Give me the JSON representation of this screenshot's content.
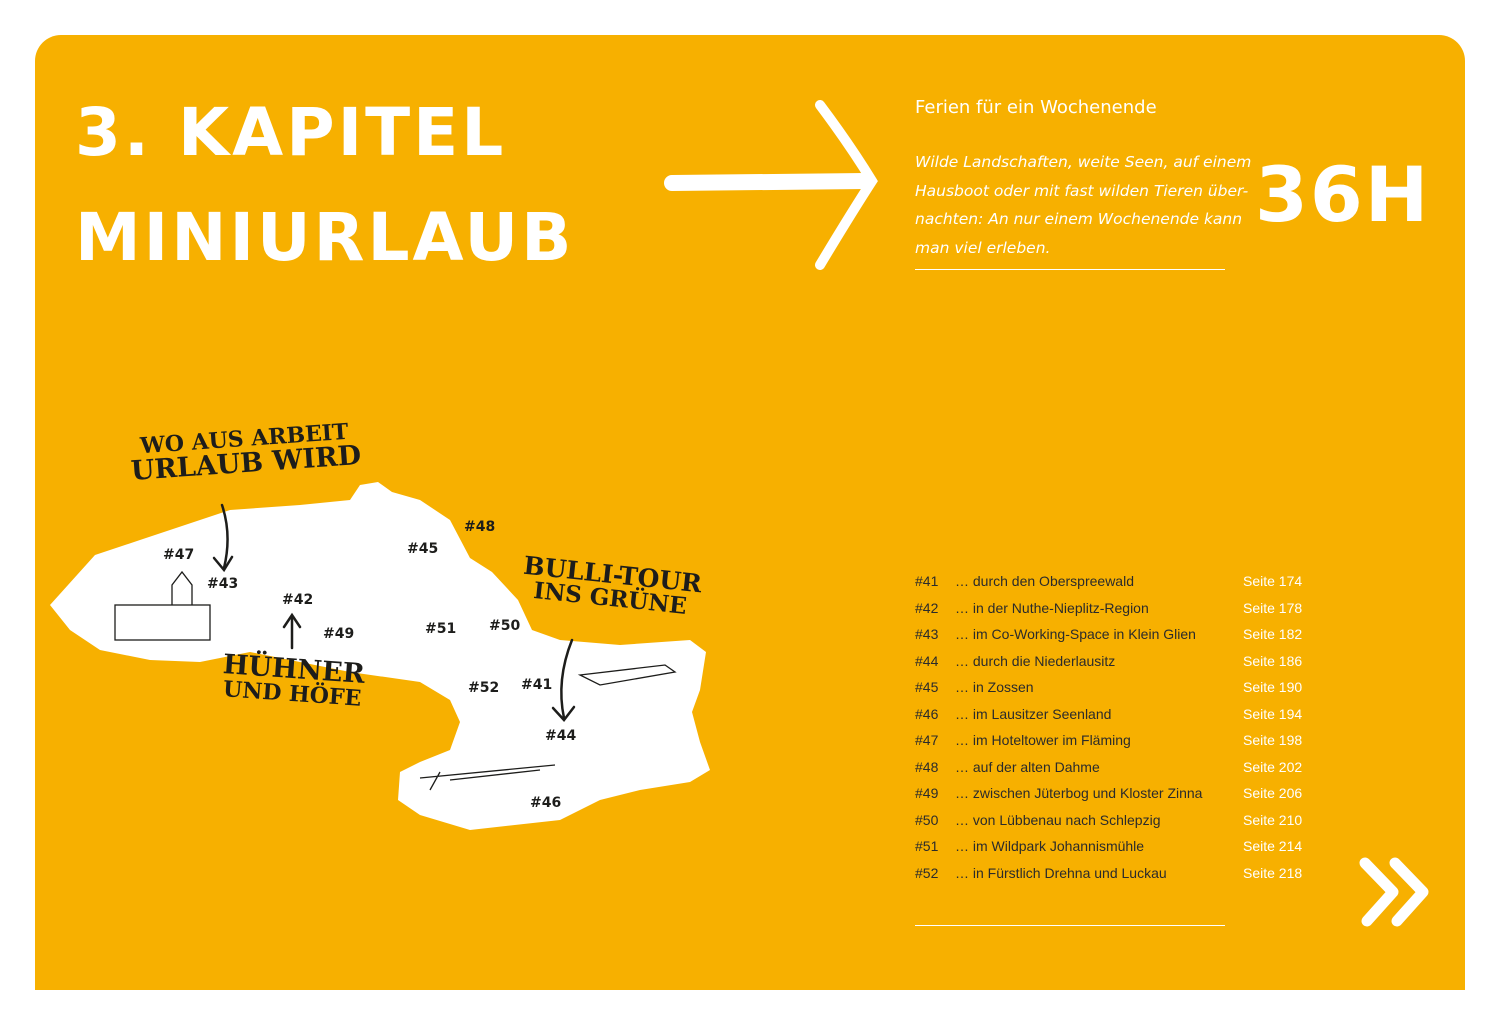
{
  "header": {
    "title": [
      "3. KAPITEL",
      "MINIURLAUB"
    ],
    "subtitle": "Ferien für ein Wochenende",
    "intro": [
      "Wilde Landschaften, weite Seen, auf einem",
      "Hausboot oder mit fast wilden Tieren über-",
      "nachten: An nur einem Wochenende kann",
      "man viel erleben."
    ],
    "badge": "36H"
  },
  "map": {
    "callouts": [
      [
        "WO AUS ARBEIT",
        "URLAUB WIRD"
      ],
      [
        "HÜHNER",
        "UND HÖFE"
      ],
      [
        "BULLI-TOUR",
        "INS GRÜNE"
      ]
    ],
    "markers": [
      "#47",
      "#43",
      "#42",
      "#49",
      "#45",
      "#48",
      "#51",
      "#50",
      "#52",
      "#41",
      "#44",
      "#46"
    ]
  },
  "list": {
    "rows": [
      [
        "#41",
        "… durch den Oberspreewald",
        "Seite 174"
      ],
      [
        "#42",
        "… in der Nuthe-Nieplitz-Region",
        "Seite 178"
      ],
      [
        "#43",
        "… im Co-Working-Space in Klein Glien",
        "Seite 182"
      ],
      [
        "#44",
        "… durch die Niederlausitz",
        "Seite 186"
      ],
      [
        "#45",
        "… in Zossen",
        "Seite 190"
      ],
      [
        "#46",
        "… im Lausitzer Seenland",
        "Seite 194"
      ],
      [
        "#47",
        "… im Hoteltower im Fläming",
        "Seite 198"
      ],
      [
        "#48",
        "… auf der alten Dahme",
        "Seite 202"
      ],
      [
        "#49",
        "… zwischen Jüterbog und Kloster Zinna",
        "Seite 206"
      ],
      [
        "#50",
        "… von Lübbenau nach Schlepzig",
        "Seite 210"
      ],
      [
        "#51",
        "… im Wildpark Johannismühle",
        "Seite 214"
      ],
      [
        "#52",
        "… in Fürstlich Drehna und Luckau",
        "Seite 218"
      ]
    ]
  }
}
